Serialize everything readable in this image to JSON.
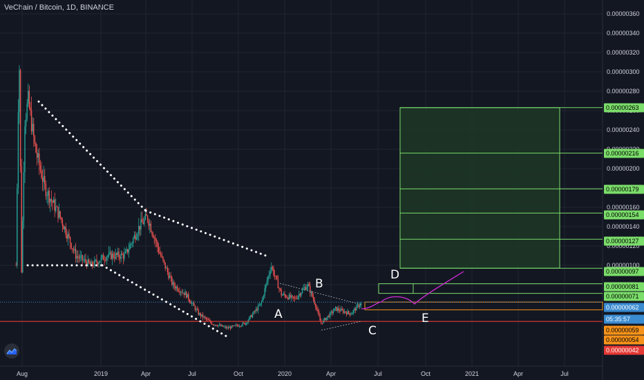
{
  "header": {
    "title": "VeChain / Bitcoin, 1D, BINANCE"
  },
  "colors": {
    "background": "#131722",
    "grid": "#1f2430",
    "text": "#d1d4dc",
    "up": "#26a69a",
    "down": "#ef5350",
    "target_box": "#7bdd6a",
    "target_fill": "#1e3a25",
    "projection": "#d32ad8",
    "current": "#3a8bd0",
    "support_red": "#e53935",
    "support_orange": "#f7931a",
    "dotted": "#ffffff"
  },
  "chart_data": {
    "type": "candlestick",
    "title": "VeChain / Bitcoin, 1D, BINANCE",
    "x_ticks": [
      "Aug",
      "2019",
      "Apr",
      "Jul",
      "Oct",
      "2020",
      "Apr",
      "Jul",
      "Oct",
      "2021",
      "Apr",
      "Jul"
    ],
    "y_ticks": [
      "0.00000360",
      "0.00000340",
      "0.00000320",
      "0.00000300",
      "0.00000280",
      "0.00000260",
      "0.00000240",
      "0.00000220",
      "0.00000200",
      "0.00000180",
      "0.00000160",
      "0.00000140",
      "0.00000120",
      "0.00000100",
      "0.00000080"
    ],
    "ylim": [
      3e-07,
      3.7e-06
    ],
    "price_path": [
      [
        "2018-07-20",
        1e-06
      ],
      [
        "2018-07-26",
        3.3e-06
      ],
      [
        "2018-07-31",
        9e-07
      ],
      [
        "2018-08-06",
        2.5e-06
      ],
      [
        "2018-08-13",
        2.7e-06
      ],
      [
        "2018-08-27",
        2.2e-06
      ],
      [
        "2018-09-15",
        1.8e-06
      ],
      [
        "2018-10-15",
        1.5e-06
      ],
      [
        "2018-11-15",
        1.1e-06
      ],
      [
        "2018-12-15",
        1e-06
      ],
      [
        "2019-01-15",
        1.1e-06
      ],
      [
        "2019-02-20",
        1.1e-06
      ],
      [
        "2019-03-20",
        1.4e-06
      ],
      [
        "2019-04-05",
        1.5e-06
      ],
      [
        "2019-05-01",
        1.1e-06
      ],
      [
        "2019-05-25",
        8e-07
      ],
      [
        "2019-06-20",
        7e-07
      ],
      [
        "2019-07-15",
        5e-07
      ],
      [
        "2019-08-10",
        4e-07
      ],
      [
        "2019-09-10",
        3.5e-07
      ],
      [
        "2019-10-15",
        4e-07
      ],
      [
        "2019-11-15",
        6e-07
      ],
      [
        "2019-12-05",
        1e-06
      ],
      [
        "2019-12-25",
        7e-07
      ],
      [
        "2020-01-20",
        6.5e-07
      ],
      [
        "2020-02-15",
        8e-07
      ],
      [
        "2020-03-01",
        6e-07
      ],
      [
        "2020-03-12",
        4e-07
      ],
      [
        "2020-04-10",
        5.5e-07
      ],
      [
        "2020-05-10",
        5e-07
      ],
      [
        "2020-06-01",
        6.2e-07
      ]
    ],
    "annotations": [
      "A",
      "B",
      "C",
      "D",
      "E"
    ],
    "price_labels": [
      {
        "value": "0.00000263",
        "kind": "target"
      },
      {
        "value": "0.00000216",
        "kind": "target"
      },
      {
        "value": "0.00000179",
        "kind": "target"
      },
      {
        "value": "0.00000154",
        "kind": "target"
      },
      {
        "value": "0.00000127",
        "kind": "target"
      },
      {
        "value": "0.00000097",
        "kind": "target"
      },
      {
        "value": "0.00000081",
        "kind": "target"
      },
      {
        "value": "0.00000071",
        "kind": "target"
      },
      {
        "value": "0.00000062",
        "kind": "current"
      },
      {
        "value": "05:35:57",
        "kind": "countdown"
      },
      {
        "value": "0.00000059",
        "kind": "orange"
      },
      {
        "value": "0.00000054",
        "kind": "orange"
      },
      {
        "value": "0.00000042",
        "kind": "red"
      }
    ],
    "grid": true
  }
}
